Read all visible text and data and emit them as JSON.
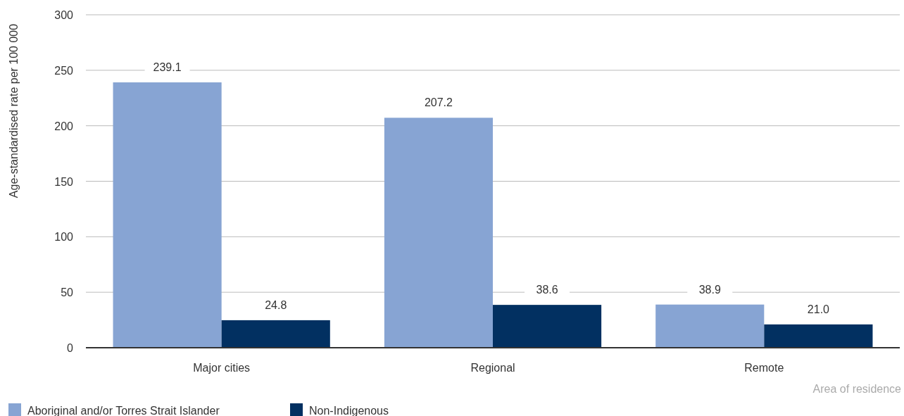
{
  "chart_data": {
    "type": "bar",
    "xlabel": "Area of residence",
    "ylabel": "Age-standardised rate per 100 000",
    "categories": [
      "Major cities",
      "Regional",
      "Remote"
    ],
    "series": [
      {
        "name": "Aboriginal and/or Torres Strait Islander",
        "color": "#87a4d3",
        "values": [
          239.1,
          207.2,
          38.9
        ]
      },
      {
        "name": "Non-Indigenous",
        "color": "#023061",
        "values": [
          24.8,
          38.6,
          21.0
        ]
      }
    ],
    "ylim": [
      0,
      300
    ],
    "yticks": [
      0,
      50,
      100,
      150,
      200,
      250,
      300
    ],
    "grid": "y",
    "legend": "bottom",
    "value_labels": [
      [
        "239.1",
        "207.2",
        "38.9"
      ],
      [
        "24.8",
        "38.6",
        "21.0"
      ]
    ]
  }
}
